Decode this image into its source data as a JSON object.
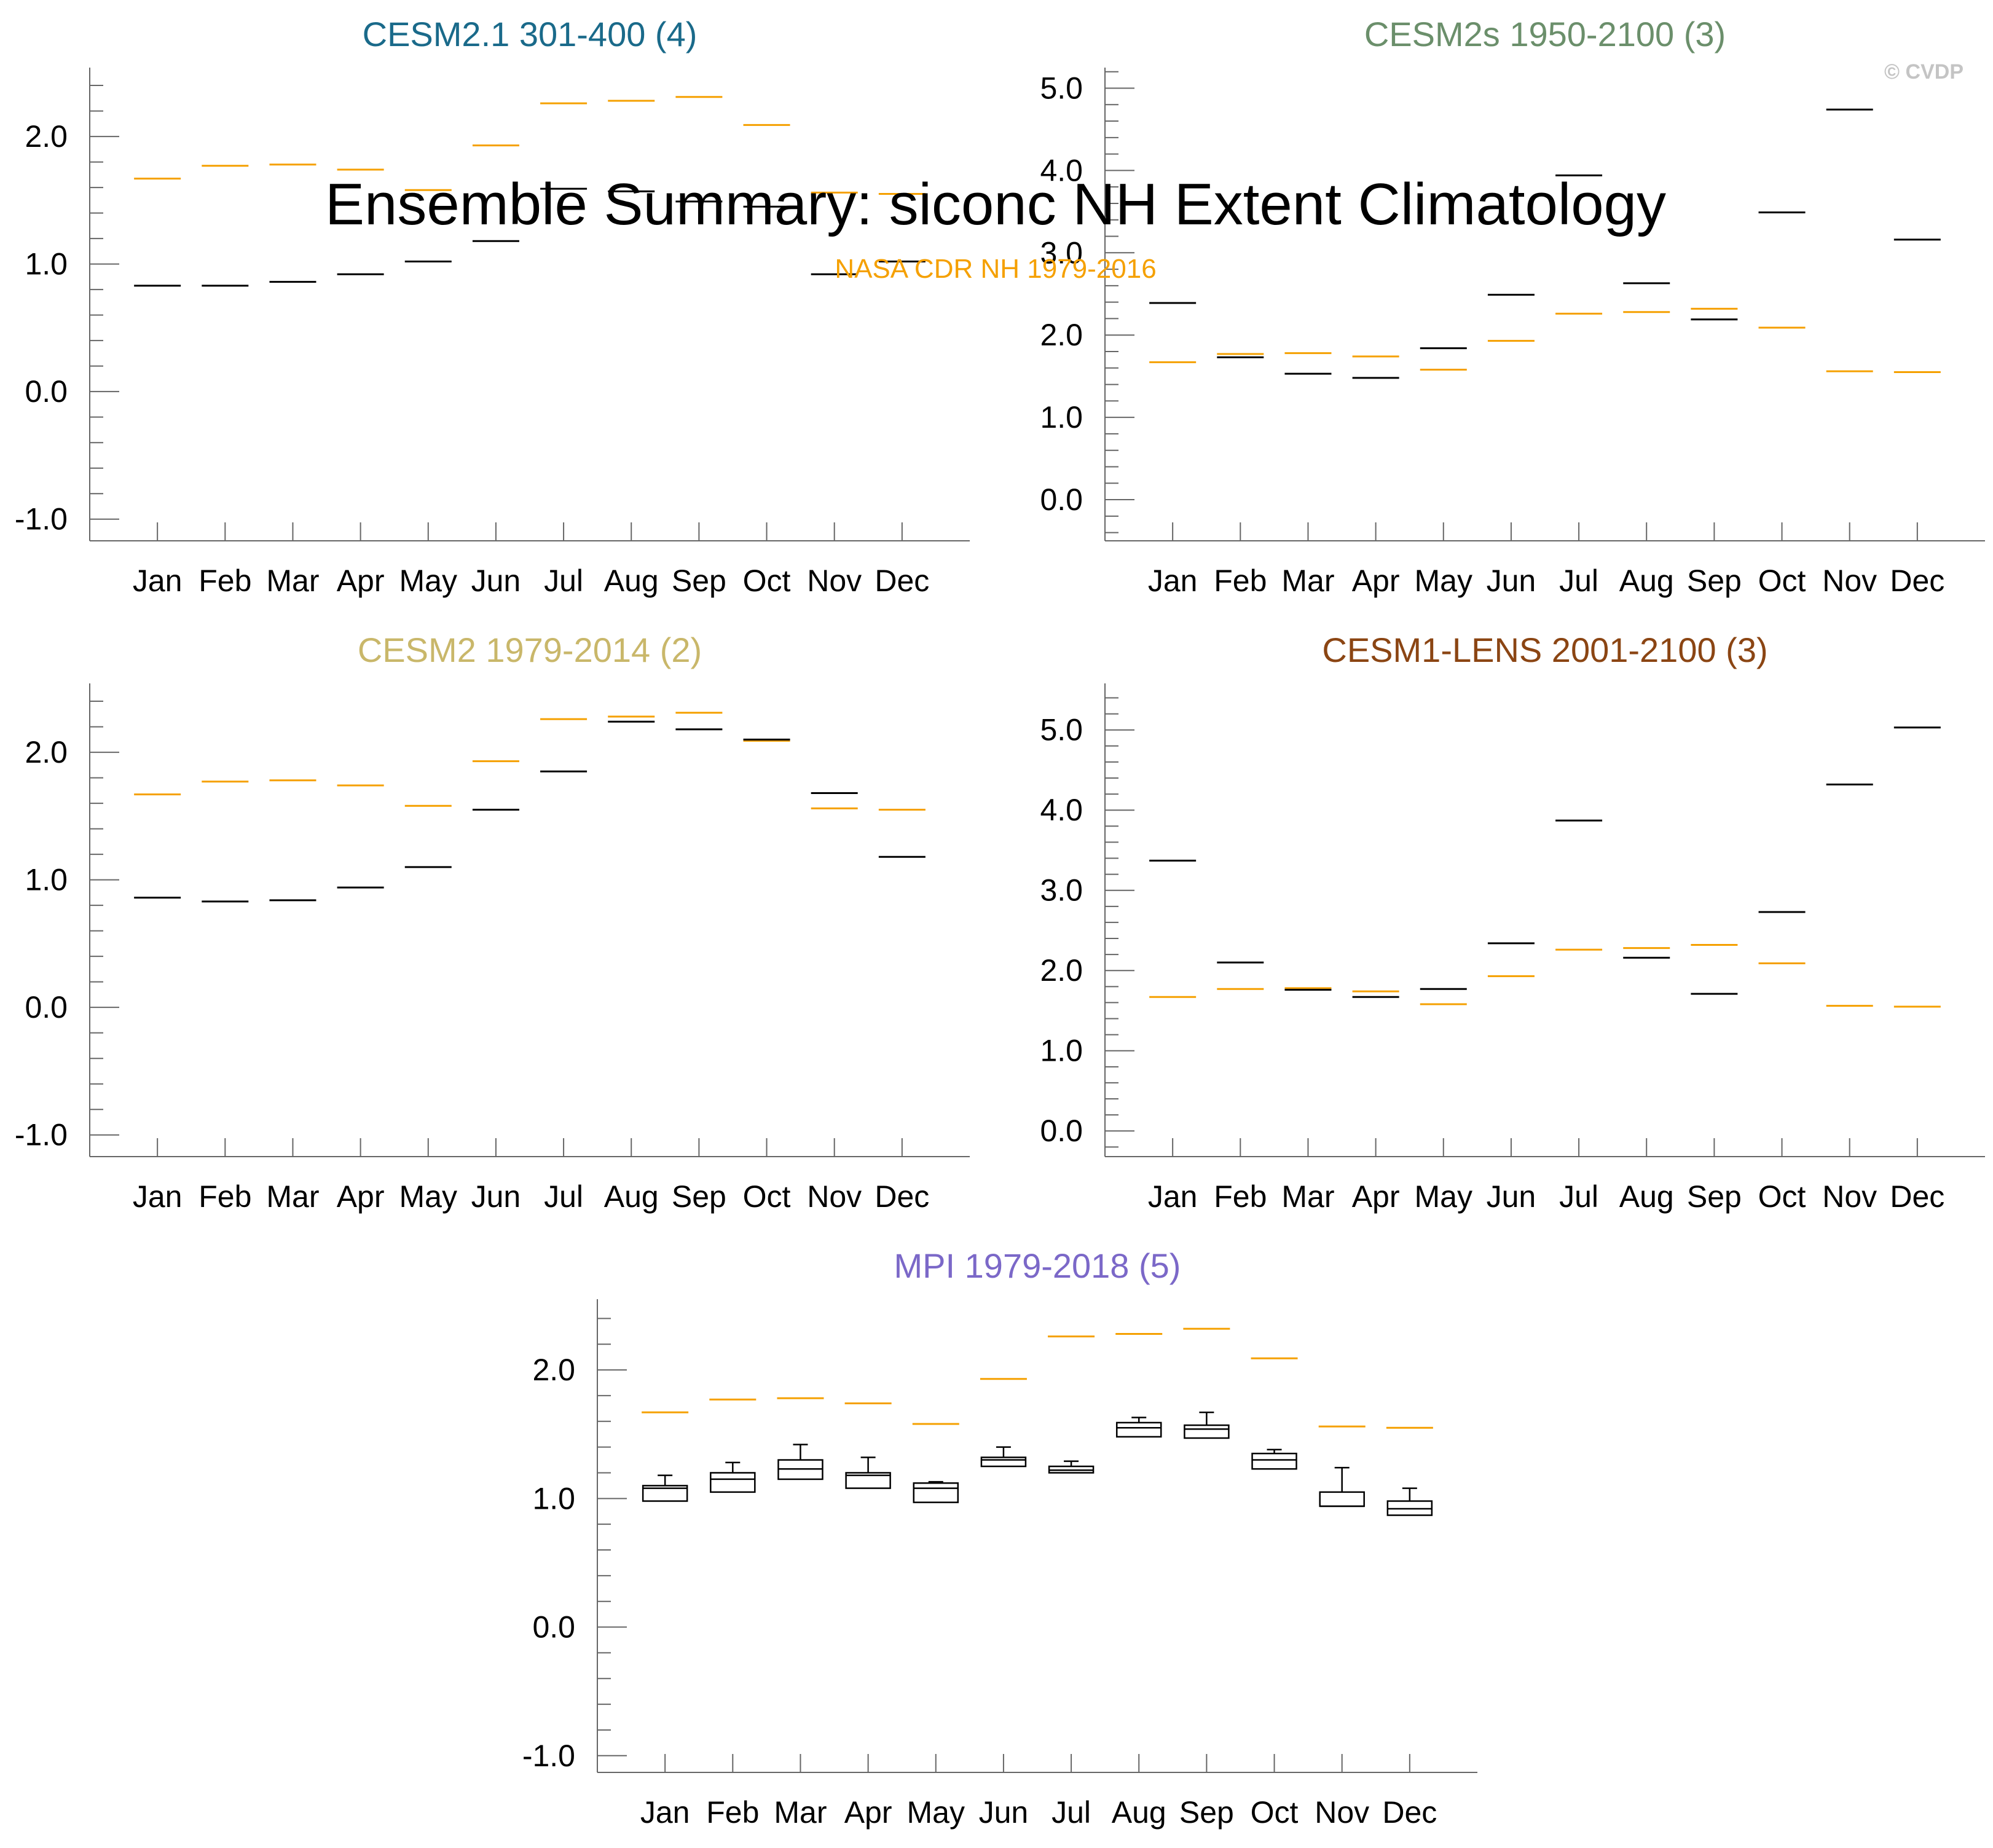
{
  "title": "Ensemble Summary: siconc NH Extent Climatology",
  "observations_label": "NASA CDR NH 1979-2016",
  "watermark": "© CVDP",
  "colors": {
    "observations": "#f5a000",
    "ensemble": "#000000",
    "axis": "#666666",
    "watermark": "#c4c4c4"
  },
  "chart_data": [
    {
      "type": "line",
      "title": "CESM2.1 301-400 (4)",
      "title_color": "#1a6a8a",
      "categories": [
        "Jan",
        "Feb",
        "Mar",
        "Apr",
        "May",
        "Jun",
        "Jul",
        "Aug",
        "Sep",
        "Oct",
        "Nov",
        "Dec"
      ],
      "ylim": [
        -1.17,
        2.54
      ],
      "yticks": [
        -1.0,
        0.0,
        1.0,
        2.0
      ],
      "ytick_labels": [
        "-1.0",
        "0.0",
        "1.0",
        "2.0"
      ],
      "series": [
        {
          "name": "NASA CDR NH 1979-2016",
          "values": [
            1.67,
            1.77,
            1.78,
            1.74,
            1.58,
            1.93,
            2.26,
            2.28,
            2.31,
            2.09,
            1.56,
            1.55
          ]
        },
        {
          "name": "Ensemble",
          "values": [
            0.83,
            0.83,
            0.86,
            0.92,
            1.02,
            1.18,
            1.59,
            1.57,
            1.49,
            1.45,
            0.92,
            1.02
          ]
        }
      ]
    },
    {
      "type": "line",
      "title": "CESM2s 1950-2100 (3)",
      "title_color": "#6b8f6b",
      "categories": [
        "Jan",
        "Feb",
        "Mar",
        "Apr",
        "May",
        "Jun",
        "Jul",
        "Aug",
        "Sep",
        "Oct",
        "Nov",
        "Dec"
      ],
      "ylim": [
        -0.5,
        5.25
      ],
      "yticks": [
        0.0,
        1.0,
        2.0,
        3.0,
        4.0,
        5.0
      ],
      "ytick_labels": [
        "0.0",
        "1.0",
        "2.0",
        "3.0",
        "4.0",
        "5.0"
      ],
      "series": [
        {
          "name": "NASA CDR NH 1979-2016",
          "values": [
            1.67,
            1.77,
            1.78,
            1.74,
            1.58,
            1.93,
            2.26,
            2.28,
            2.32,
            2.09,
            1.56,
            1.55
          ]
        },
        {
          "name": "Ensemble",
          "values": [
            2.39,
            1.73,
            1.53,
            1.48,
            1.84,
            2.49,
            3.94,
            2.63,
            2.19,
            3.49,
            4.74,
            3.16
          ]
        }
      ]
    },
    {
      "type": "line",
      "title": "CESM2 1979-2014 (2)",
      "title_color": "#c9b76a",
      "categories": [
        "Jan",
        "Feb",
        "Mar",
        "Apr",
        "May",
        "Jun",
        "Jul",
        "Aug",
        "Sep",
        "Oct",
        "Nov",
        "Dec"
      ],
      "ylim": [
        -1.17,
        2.54
      ],
      "yticks": [
        -1.0,
        0.0,
        1.0,
        2.0
      ],
      "ytick_labels": [
        "-1.0",
        "0.0",
        "1.0",
        "2.0"
      ],
      "series": [
        {
          "name": "NASA CDR NH 1979-2016",
          "values": [
            1.67,
            1.77,
            1.78,
            1.74,
            1.58,
            1.93,
            2.26,
            2.28,
            2.31,
            2.09,
            1.56,
            1.55
          ]
        },
        {
          "name": "Ensemble",
          "values": [
            0.86,
            0.83,
            0.84,
            0.94,
            1.1,
            1.55,
            1.85,
            2.24,
            2.18,
            2.1,
            1.68,
            1.18
          ]
        }
      ]
    },
    {
      "type": "line",
      "title": "CESM1-LENS 2001-2100 (3)",
      "title_color": "#8b4513",
      "categories": [
        "Jan",
        "Feb",
        "Mar",
        "Apr",
        "May",
        "Jun",
        "Jul",
        "Aug",
        "Sep",
        "Oct",
        "Nov",
        "Dec"
      ],
      "ylim": [
        -0.32,
        5.58
      ],
      "yticks": [
        0.0,
        1.0,
        2.0,
        3.0,
        4.0,
        5.0
      ],
      "ytick_labels": [
        "0.0",
        "1.0",
        "2.0",
        "3.0",
        "4.0",
        "5.0"
      ],
      "series": [
        {
          "name": "NASA CDR NH 1979-2016",
          "values": [
            1.67,
            1.77,
            1.78,
            1.74,
            1.58,
            1.93,
            2.26,
            2.28,
            2.32,
            2.09,
            1.56,
            1.55
          ]
        },
        {
          "name": "Ensemble",
          "values": [
            3.37,
            2.1,
            1.76,
            1.67,
            1.77,
            2.34,
            3.87,
            2.16,
            1.71,
            2.73,
            4.32,
            5.03
          ]
        }
      ]
    },
    {
      "type": "box",
      "title": "MPI 1979-2018 (5)",
      "title_color": "#7b68c8",
      "categories": [
        "Jan",
        "Feb",
        "Mar",
        "Apr",
        "May",
        "Jun",
        "Jul",
        "Aug",
        "Sep",
        "Oct",
        "Nov",
        "Dec"
      ],
      "ylim": [
        -1.13,
        2.55
      ],
      "yticks": [
        -1.0,
        0.0,
        1.0,
        2.0
      ],
      "ytick_labels": [
        "-1.0",
        "0.0",
        "1.0",
        "2.0"
      ],
      "series": [
        {
          "name": "NASA CDR NH 1979-2016",
          "values": [
            1.67,
            1.77,
            1.78,
            1.74,
            1.58,
            1.93,
            2.26,
            2.28,
            2.32,
            2.09,
            1.56,
            1.55
          ]
        }
      ],
      "boxes": [
        {
          "min": 0.98,
          "q1": 0.98,
          "median": 1.08,
          "q3": 1.1,
          "max": 1.18
        },
        {
          "min": 1.05,
          "q1": 1.05,
          "median": 1.15,
          "q3": 1.2,
          "max": 1.28
        },
        {
          "min": 1.15,
          "q1": 1.15,
          "median": 1.23,
          "q3": 1.3,
          "max": 1.42
        },
        {
          "min": 1.08,
          "q1": 1.08,
          "median": 1.18,
          "q3": 1.2,
          "max": 1.32
        },
        {
          "min": 0.97,
          "q1": 0.97,
          "median": 1.08,
          "q3": 1.12,
          "max": 1.13
        },
        {
          "min": 1.25,
          "q1": 1.25,
          "median": 1.3,
          "q3": 1.32,
          "max": 1.4
        },
        {
          "min": 1.2,
          "q1": 1.2,
          "median": 1.22,
          "q3": 1.25,
          "max": 1.29
        },
        {
          "min": 1.48,
          "q1": 1.48,
          "median": 1.55,
          "q3": 1.59,
          "max": 1.63
        },
        {
          "min": 1.47,
          "q1": 1.47,
          "median": 1.54,
          "q3": 1.57,
          "max": 1.67
        },
        {
          "min": 1.23,
          "q1": 1.23,
          "median": 1.3,
          "q3": 1.35,
          "max": 1.38
        },
        {
          "min": 0.94,
          "q1": 0.94,
          "median": 0.94,
          "q3": 1.05,
          "max": 1.24
        },
        {
          "min": 0.87,
          "q1": 0.87,
          "median": 0.92,
          "q3": 0.98,
          "max": 1.08
        }
      ]
    }
  ]
}
